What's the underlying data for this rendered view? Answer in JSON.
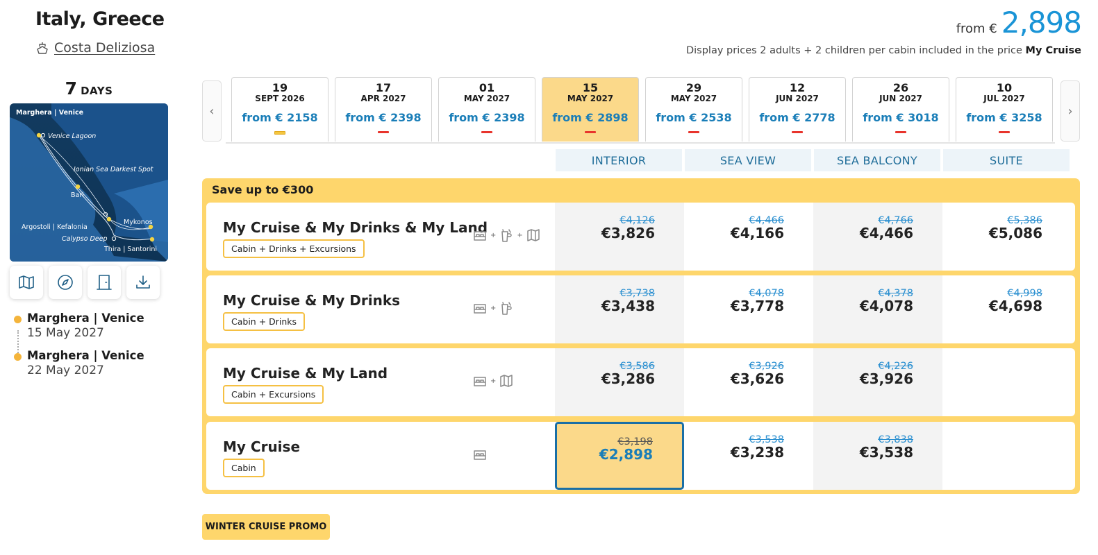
{
  "header": {
    "title": "Italy, Greece",
    "ship_name": "Costa Deliziosa",
    "ship_icon": "ship-icon",
    "days_num": "7",
    "days_label": "DAYS"
  },
  "map": {
    "labels": [
      "Marghera | Venice",
      "Venice Lagoon",
      "Ionian Sea Darkest Spot",
      "Bari",
      "Mykonos",
      "Argostoli | Kefalonia",
      "Calypso Deep",
      "Thira | Santorini"
    ],
    "tools": [
      "map-icon",
      "compass-icon",
      "door-icon",
      "download-icon"
    ]
  },
  "itinerary": [
    {
      "port": "Marghera | Venice",
      "date": "15 May 2027"
    },
    {
      "port": "Marghera | Venice",
      "date": "22 May 2027"
    }
  ],
  "top_price": {
    "from": "from €",
    "value": "2,898"
  },
  "note": {
    "text": "Display prices 2 adults + 2 children per cabin included in the price",
    "bold": "My Cruise"
  },
  "dates": [
    {
      "day": "19",
      "month": "SEPT 2026",
      "from": "from € 2158",
      "bar": "yellow"
    },
    {
      "day": "17",
      "month": "APR 2027",
      "from": "from € 2398",
      "bar": "red"
    },
    {
      "day": "01",
      "month": "MAY 2027",
      "from": "from € 2398",
      "bar": "red"
    },
    {
      "day": "15",
      "month": "MAY 2027",
      "from": "from € 2898",
      "bar": "red",
      "selected": true
    },
    {
      "day": "29",
      "month": "MAY 2027",
      "from": "from € 2538",
      "bar": "red"
    },
    {
      "day": "12",
      "month": "JUN 2027",
      "from": "from € 2778",
      "bar": "red"
    },
    {
      "day": "26",
      "month": "JUN 2027",
      "from": "from € 3018",
      "bar": "red"
    },
    {
      "day": "10",
      "month": "JUL 2027",
      "from": "from € 3258",
      "bar": "red"
    }
  ],
  "cabins": [
    "INTERIOR",
    "SEA VIEW",
    "SEA BALCONY",
    "SUITE"
  ],
  "save_label": "Save up to €300",
  "packages": [
    {
      "name": "My Cruise & My Drinks & My Land",
      "tag": "Cabin + Drinks + Excursions",
      "icons": [
        "bed-icon",
        "drinks-icon",
        "map-icon"
      ],
      "prices": [
        {
          "old": "€4,126",
          "new": "€3,826"
        },
        {
          "old": "€4,466",
          "new": "€4,166"
        },
        {
          "old": "€4,766",
          "new": "€4,466"
        },
        {
          "old": "€5,386",
          "new": "€5,086"
        }
      ]
    },
    {
      "name": "My Cruise & My Drinks",
      "tag": "Cabin + Drinks",
      "icons": [
        "bed-icon",
        "drinks-icon"
      ],
      "prices": [
        {
          "old": "€3,738",
          "new": "€3,438"
        },
        {
          "old": "€4,078",
          "new": "€3,778"
        },
        {
          "old": "€4,378",
          "new": "€4,078"
        },
        {
          "old": "€4,998",
          "new": "€4,698"
        }
      ]
    },
    {
      "name": "My Cruise & My Land",
      "tag": "Cabin + Excursions",
      "icons": [
        "bed-icon",
        "map-icon"
      ],
      "prices": [
        {
          "old": "€3,586",
          "new": "€3,286"
        },
        {
          "old": "€3,926",
          "new": "€3,626"
        },
        {
          "old": "€4,226",
          "new": "€3,926"
        },
        null
      ]
    },
    {
      "name": "My Cruise",
      "tag": "Cabin",
      "icons": [
        "bed-icon"
      ],
      "prices": [
        {
          "old": "€3,198",
          "new": "€2,898",
          "selected": true
        },
        {
          "old": "€3,538",
          "new": "€3,238"
        },
        {
          "old": "€3,838",
          "new": "€3,538"
        },
        null
      ]
    }
  ],
  "winter_promo": "WINTER CRUISE PROMO",
  "colors": {
    "accent": "#1a94d6",
    "promo": "#fed66c",
    "selected_date": "#fbd98a",
    "selection_border": "#1a6fa6"
  }
}
